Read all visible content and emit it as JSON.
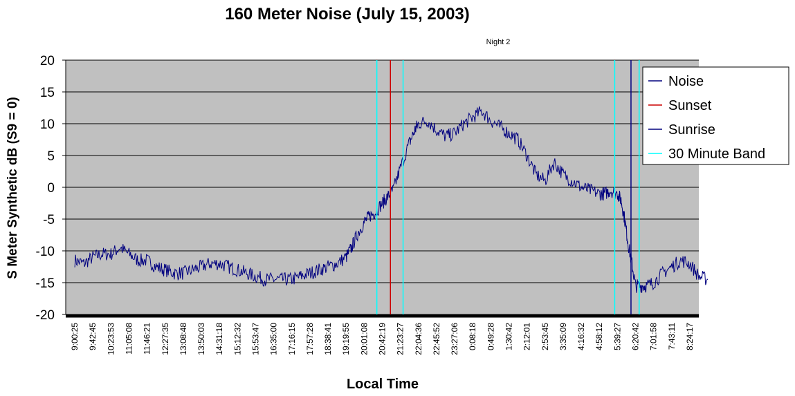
{
  "chart_data": {
    "type": "line",
    "title": "160 Meter Noise (July 15, 2003)",
    "subtitle": "Night 2",
    "xlabel": "Local Time",
    "ylabel": "S Meter Synthetic dB (S9 = 0)",
    "ylim": [
      -20,
      20
    ],
    "yticks": [
      20,
      15,
      10,
      5,
      0,
      -5,
      -10,
      -15,
      -20
    ],
    "grid": true,
    "legend_position": "right",
    "xticks": [
      "9:00:25",
      "9:42:45",
      "10:23:53",
      "11:05:08",
      "11:46:21",
      "12:27:35",
      "13:08:48",
      "13:50:03",
      "14:31:18",
      "15:12:32",
      "15:53:47",
      "16:35:00",
      "17:16:15",
      "17:57:28",
      "18:38:41",
      "19:19:55",
      "20:01:08",
      "20:42:19",
      "21:23:27",
      "22:04:36",
      "22:45:52",
      "23:27:06",
      "0:08:18",
      "0:49:28",
      "1:30:42",
      "2:12:01",
      "2:53:45",
      "3:35:09",
      "4:16:32",
      "4:58:12",
      "5:39:27",
      "6:20:42",
      "7:01:58",
      "7:43:11",
      "8:24:17"
    ],
    "x_tick_spacing_min": 41.25,
    "series": [
      {
        "name": "Noise",
        "color": "#00007f",
        "x": [
          0,
          0.5,
          1,
          1.5,
          2,
          2.5,
          3,
          3.5,
          4,
          4.5,
          5,
          5.5,
          6,
          6.5,
          7,
          7.5,
          8,
          8.5,
          9,
          9.5,
          10,
          10.5,
          11,
          11.5,
          12,
          12.5,
          13,
          13.5,
          14,
          14.5,
          15,
          15.3,
          15.6,
          16,
          16.3,
          16.6,
          17,
          17.3,
          17.6,
          18,
          18.5,
          18.8,
          19,
          19.5,
          20,
          20.5,
          21,
          21.5,
          22,
          22.5,
          23,
          23.5,
          24,
          24.5,
          25,
          25.5,
          26,
          26.5,
          27,
          27.5,
          28,
          28.5,
          29,
          29.3,
          29.6,
          30,
          30.2,
          30.4,
          30.6,
          30.8,
          31,
          31.3,
          31.6,
          32,
          32.5,
          33,
          33.5,
          34,
          34.5,
          35
        ],
        "values": [
          -11.5,
          -12,
          -11,
          -10.5,
          -10.5,
          -9.5,
          -10.5,
          -11.5,
          -11.5,
          -12.5,
          -13,
          -13.5,
          -13.5,
          -13,
          -12.5,
          -12,
          -12,
          -12.5,
          -13,
          -13.5,
          -14,
          -14.5,
          -14.5,
          -14.5,
          -14.5,
          -14,
          -13.5,
          -13,
          -12.5,
          -12,
          -11,
          -9.5,
          -7.5,
          -5.5,
          -4.5,
          -4,
          -2.5,
          -1.5,
          -0.5,
          3,
          7,
          9,
          10,
          10.5,
          9,
          8,
          8.5,
          10,
          11,
          12,
          10.5,
          9.5,
          8.5,
          7.5,
          5,
          2,
          1,
          4,
          2,
          1,
          0,
          -0.5,
          -1,
          -1,
          -0.5,
          -1,
          -2,
          -5,
          -9,
          -12,
          -15.5,
          -15.5,
          -15.5,
          -15,
          -13.5,
          -12.5,
          -11.5,
          -12,
          -14,
          -14.5
        ]
      }
    ],
    "markers": [
      {
        "name": "Sunset",
        "x": 17.45,
        "color": "#cc0000"
      },
      {
        "name": "Sunrise",
        "x": 30.75,
        "color": "#00007f"
      },
      {
        "name": "30 Minute Band",
        "x": [
          16.7,
          18.15,
          29.85,
          31.2
        ],
        "color": "#00ffff"
      }
    ],
    "colors": {
      "plot_background": "#c0c0c0",
      "grid": "#000000",
      "noise": "#00007f",
      "sunset": "#cc0000",
      "sunrise": "#00007f",
      "band": "#00ffff"
    }
  }
}
